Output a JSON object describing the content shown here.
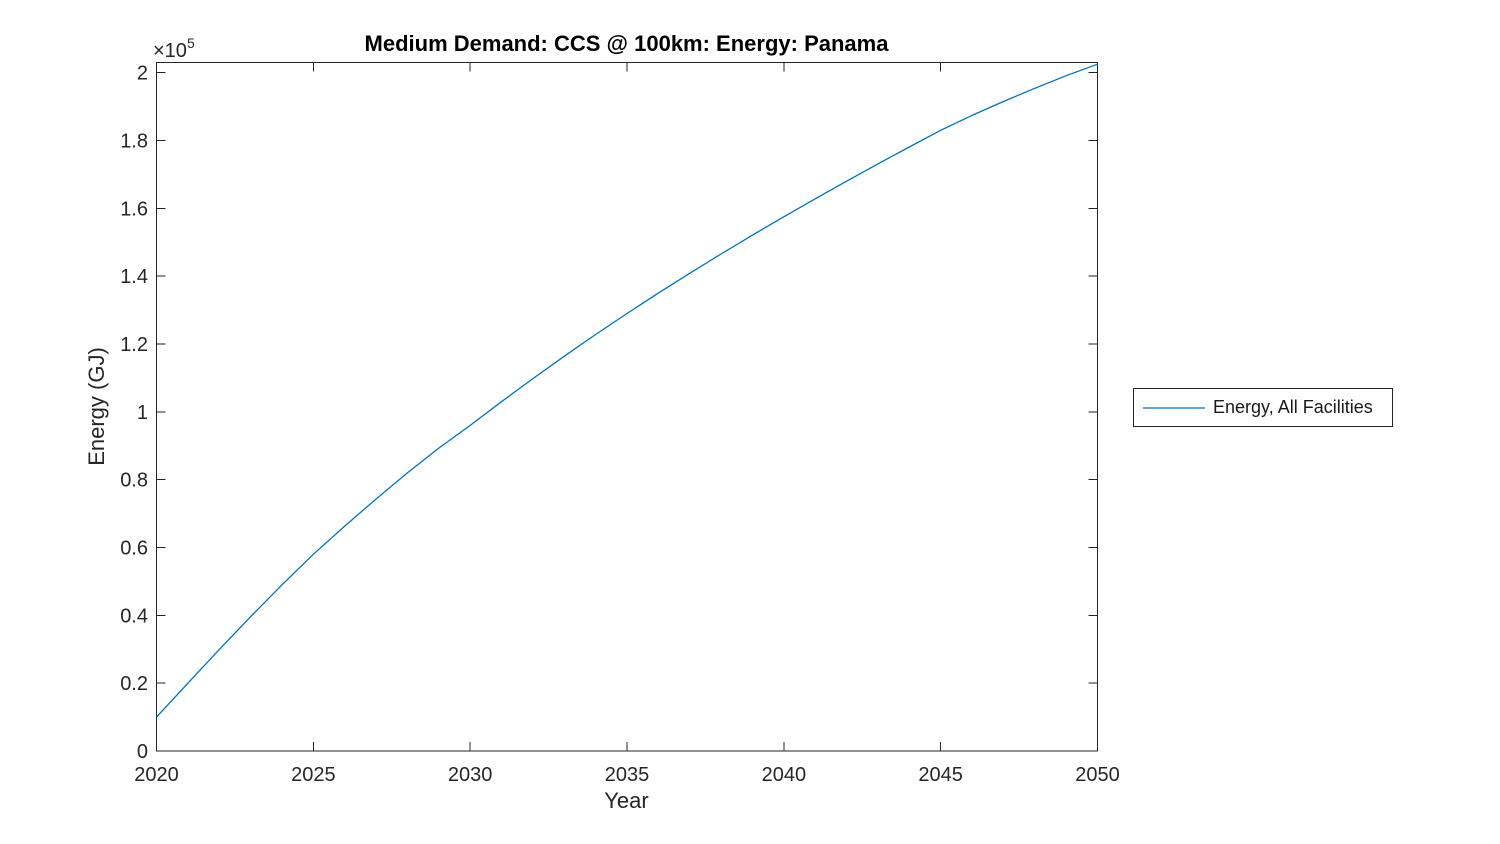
{
  "figure": {
    "title": "Medium Demand: CCS @ 100km: Energy: Panama",
    "xlabel": "Year",
    "ylabel": "Energy (GJ)",
    "y_multiplier": "×10",
    "y_multiplier_exp": "5",
    "legend": {
      "label": "Energy, All Facilities"
    },
    "colors": {
      "line": "#0072BD",
      "axis": "#262626",
      "title": "#000000",
      "background": "#ffffff"
    }
  },
  "chart_data": {
    "type": "line",
    "title": "Medium Demand: CCS @ 100km: Energy: Panama",
    "xlabel": "Year",
    "ylabel": "Energy (GJ)",
    "y_axis_multiplier": "×10^5",
    "xlim": [
      2020,
      2050
    ],
    "ylim": [
      0,
      203000
    ],
    "x_ticks": [
      2020,
      2025,
      2030,
      2035,
      2040,
      2045,
      2050
    ],
    "y_ticks": [
      0,
      20000,
      40000,
      60000,
      80000,
      100000,
      120000,
      140000,
      160000,
      180000,
      200000
    ],
    "y_tick_labels": [
      "0",
      "0.2",
      "0.4",
      "0.6",
      "0.8",
      "1",
      "1.2",
      "1.4",
      "1.6",
      "1.8",
      "2"
    ],
    "grid": false,
    "legend_position": "outside-right",
    "series": [
      {
        "name": "Energy, All Facilities",
        "color": "#0072BD",
        "x": [
          2020,
          2021,
          2022,
          2023,
          2024,
          2025,
          2026,
          2027,
          2028,
          2029,
          2030,
          2031,
          2032,
          2033,
          2034,
          2035,
          2036,
          2037,
          2038,
          2039,
          2040,
          2041,
          2042,
          2043,
          2044,
          2045,
          2046,
          2047,
          2048,
          2049,
          2050
        ],
        "values": [
          10000,
          20000,
          29900,
          39600,
          49000,
          58000,
          66300,
          74300,
          82000,
          89300,
          96000,
          103000,
          109800,
          116400,
          122800,
          129000,
          135000,
          140850,
          146550,
          152100,
          157500,
          162800,
          168000,
          173100,
          178100,
          183000,
          187400,
          191500,
          195400,
          199100,
          202500
        ]
      }
    ]
  }
}
